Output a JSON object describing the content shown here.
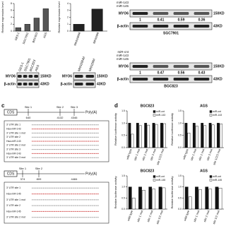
{
  "charts": [
    {
      "type": "bar",
      "ylabel": "Relative expression level",
      "categories": [
        "GES-1",
        "SGC7901",
        "BGC823",
        "AGS"
      ],
      "series": [
        {
          "color": "#555555",
          "values": [
            1,
            2,
            3.8,
            6.5
          ]
        }
      ],
      "ylim": [
        0,
        8
      ],
      "yticks": [
        0,
        2,
        4,
        6,
        8
      ]
    },
    {
      "type": "bar",
      "ylabel": "Relative expression level",
      "categories": [
        "MKN28NM",
        "MKN28M"
      ],
      "series": [
        {
          "color": "#222222",
          "values": [
            1,
            3.2
          ]
        }
      ],
      "ylim": [
        0,
        4
      ],
      "yticks": [
        0,
        1,
        2,
        3,
        4
      ]
    },
    {
      "type": "bar",
      "title": "BGC823",
      "ylabel": "Relative luciferase activity",
      "categories": [
        "wild type",
        "site 1 mut",
        "site 2 mut",
        "site 3 mut",
        "site 1/2/3 mut"
      ],
      "series": [
        {
          "name": "miR-cnt",
          "color": "#111111",
          "values": [
            1,
            1,
            1,
            1,
            1
          ]
        },
        {
          "name": "miR-143",
          "color": "#ffffff",
          "values": [
            0.55,
            0.9,
            0.92,
            0.95,
            0.98
          ]
        }
      ],
      "ylim": [
        0,
        1.5
      ],
      "yticks": [
        {
          "value": 0,
          "label": "0.0"
        },
        {
          "value": 0.5,
          "label": "0.5"
        },
        {
          "value": 1,
          "label": "1.0"
        },
        {
          "value": 1.5,
          "label": "1.5"
        }
      ]
    },
    {
      "type": "bar",
      "title": "AGS",
      "ylabel": "Relative luciferase activity",
      "categories": [
        "wild type",
        "site 1 mut",
        "site 2 mut",
        "site 3 mut",
        "site 1/2/3 mut"
      ],
      "series": [
        {
          "name": "miR-cnt",
          "color": "#111111",
          "values": [
            1,
            1,
            1,
            1,
            1
          ]
        },
        {
          "name": "miR-143",
          "color": "#ffffff",
          "values": [
            0.6,
            0.88,
            0.9,
            0.93,
            0.97
          ]
        }
      ],
      "ylim": [
        0,
        1.5
      ],
      "yticks": [
        {
          "value": 0,
          "label": "0.0"
        },
        {
          "value": 0.5,
          "label": "0.5"
        },
        {
          "value": 1,
          "label": "1.0"
        },
        {
          "value": 1.5,
          "label": "1.5"
        }
      ]
    },
    {
      "type": "bar",
      "title": "BGC823",
      "ylabel": "Relative luciferase activity",
      "categories": [
        "wild type",
        "site 1 mut",
        "site 2 mut",
        "site 1/2 mut"
      ],
      "series": [
        {
          "name": "miR-cnt",
          "color": "#111111",
          "values": [
            1,
            1,
            1,
            1
          ]
        },
        {
          "name": "miR-145",
          "color": "#ffffff",
          "values": [
            0.5,
            0.85,
            0.9,
            0.96
          ]
        }
      ],
      "ylim": [
        0,
        1.5
      ],
      "yticks": [
        {
          "value": 0,
          "label": "0.0"
        },
        {
          "value": 0.5,
          "label": "0.5"
        },
        {
          "value": 1,
          "label": "1.0"
        },
        {
          "value": 1.5,
          "label": "1.5"
        }
      ]
    },
    {
      "type": "bar",
      "title": "AGS",
      "ylabel": "Relative luciferase activity",
      "categories": [
        "wild type",
        "site 1 mut",
        "site 2 mut",
        "site 1/2 mut"
      ],
      "series": [
        {
          "name": "miR-cnt",
          "color": "#111111",
          "values": [
            1,
            1,
            1,
            1
          ]
        },
        {
          "name": "miR-145",
          "color": "#ffffff",
          "values": [
            0.55,
            0.88,
            0.9,
            0.95
          ]
        }
      ],
      "ylim": [
        0,
        1.5
      ],
      "yticks": [
        {
          "value": 0,
          "label": "0.0"
        },
        {
          "value": 0.5,
          "label": "0.5"
        },
        {
          "value": 1,
          "label": "1.0"
        },
        {
          "value": 1.5,
          "label": "1.5"
        }
      ]
    }
  ],
  "blots": [
    {
      "lanes": [
        "GES-1",
        "SGC7901",
        "BGC823",
        "AGS"
      ],
      "rows": [
        {
          "label": "MYO6",
          "kd": "150KD"
        },
        {
          "label": "β-actin",
          "kd": "43KD"
        }
      ]
    },
    {
      "lanes": [
        "MKN28NM",
        "MKN28M"
      ],
      "rows": [
        {
          "label": "MYO6",
          "kd": "150KD"
        },
        {
          "label": "β-actin",
          "kd": "43KD"
        }
      ]
    },
    {
      "treatments": [
        "miR-143",
        "miR-145"
      ],
      "rows": [
        {
          "label": "MYO6",
          "kd": "150KD"
        },
        {
          "label": "β-actin",
          "kd": "43KD"
        }
      ],
      "ratios": [
        "1",
        "0.41",
        "0.59",
        "0.36"
      ],
      "cell": "SGC7901"
    },
    {
      "treatments": [
        "miR-cnt",
        "miR-143",
        "miR-145"
      ],
      "rows": [
        {
          "label": "MYO6",
          "kd": "150KD"
        },
        {
          "label": "β-actin",
          "kd": "43KD"
        }
      ],
      "ratios": [
        "1",
        "0.47",
        "0.56",
        "0.43"
      ],
      "cell": "BGC823"
    }
  ],
  "panel_labels": [
    "c",
    "d"
  ],
  "constructs": [
    {
      "cds": "CDS",
      "sites": [
        "Site 1",
        "Site 2",
        "Site 3"
      ],
      "polya": "Poly(A)",
      "positions": [
        "640",
        "4132",
        "4346"
      ],
      "seq_labels": [
        "3' UTR site 1",
        "Hsa-miR-143",
        "3' UTR site 1 mut",
        "3' UTR site 2",
        "Hsa-miR-143",
        "3' UTR site 2 mut",
        "3' UTR site 3",
        "Hsa-miR-143",
        "3' UTR site 3 mut"
      ]
    },
    {
      "cds": "CDS",
      "sites": [
        "Site 1",
        "Site 2"
      ],
      "polya": "Poly(A)",
      "positions": [
        "374",
        "809",
        "4484"
      ],
      "seq_labels": [
        "3' UTR site 1",
        "Hsa-miR-145",
        "3' UTR site 1 mut",
        "3' UTR site 2",
        "Hsa-miR-145",
        "3' UTR site 2 mut"
      ]
    }
  ]
}
